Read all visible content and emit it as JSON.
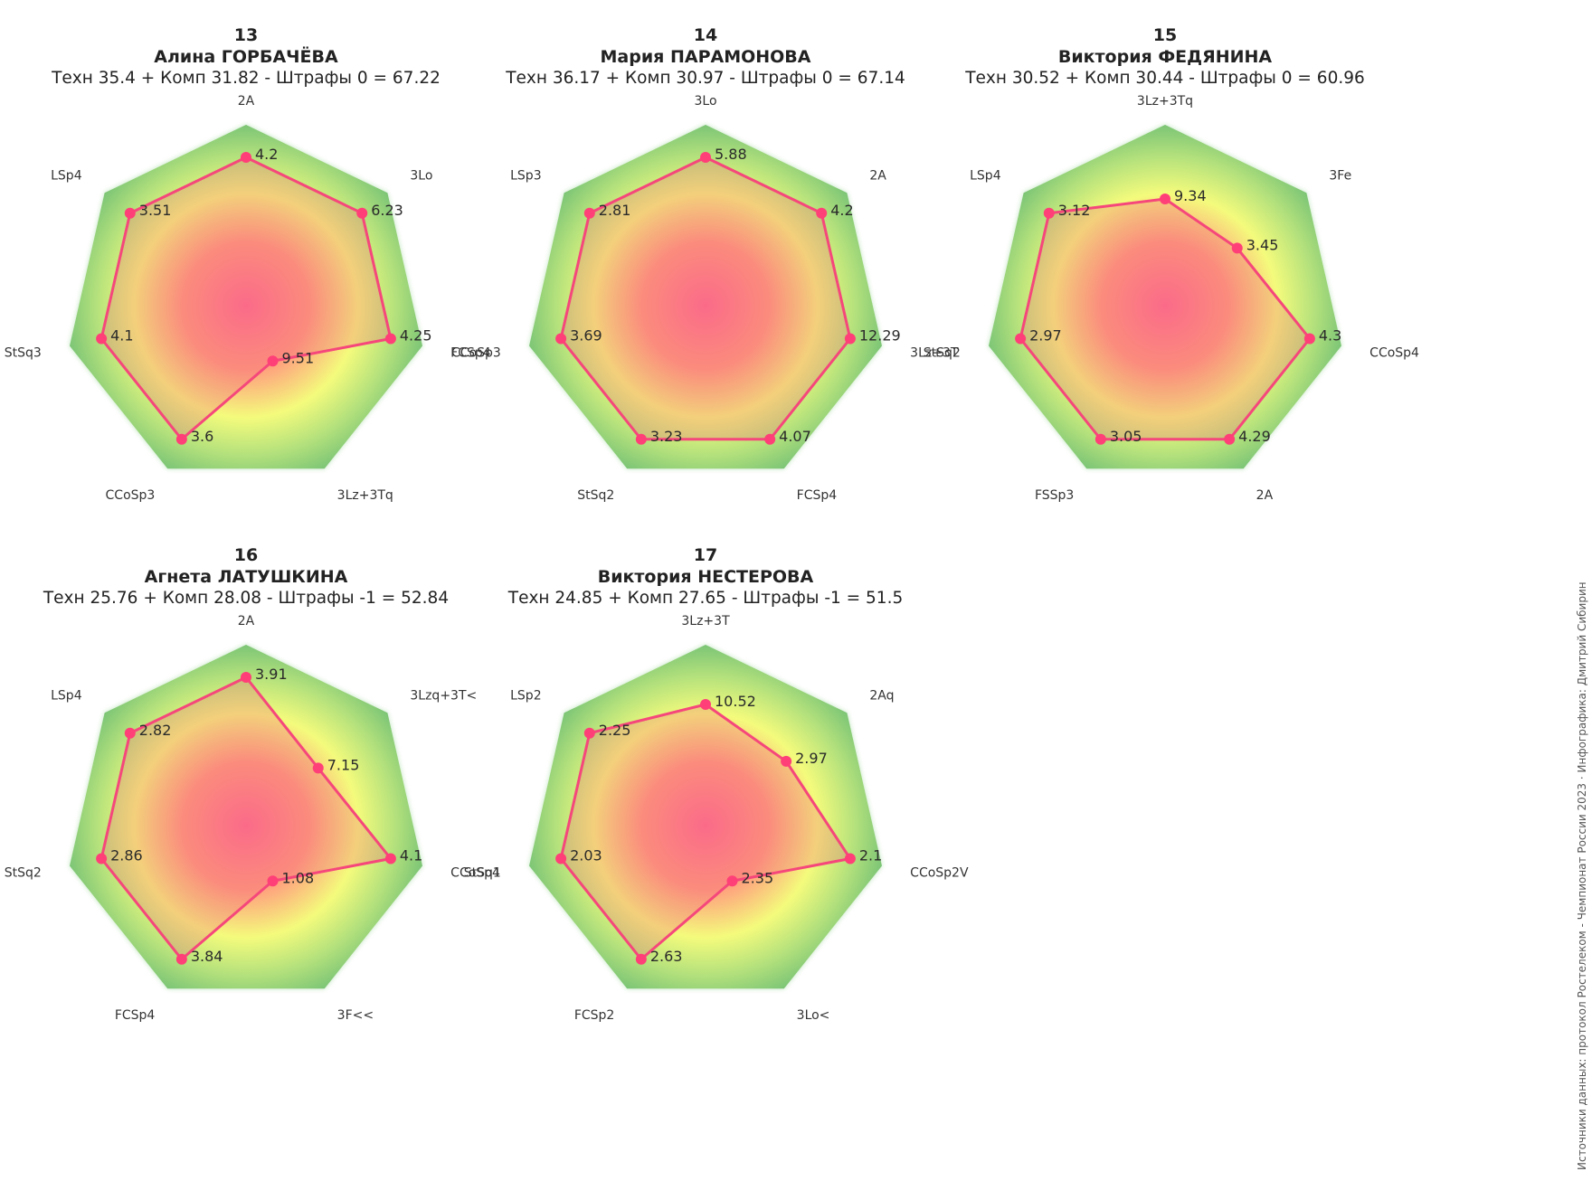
{
  "colors": {
    "outer_green": "#7cc576",
    "mid_yellow": "#f4fb7c",
    "inner_pink": "#ff6f8f",
    "line": "#f5477b",
    "marker": "#ff3f78"
  },
  "credit": "Источники данных: протокол Ростелеком - Чемпионат России 2023 · Инфографика: Дмитрий Сибирин",
  "chart_data": [
    {
      "type": "radar",
      "rank": "13",
      "name": "Алина ГОРБАЧЁВА",
      "score_line": "Техн 35.4 + Комп 31.82 - Штрафы 0 = 67.22",
      "axes": [
        "2A",
        "3Lo",
        "FCSp4",
        "3Lz+3Tq",
        "CCoSp3",
        "StSq3",
        "LSp4"
      ],
      "values": [
        4.2,
        6.23,
        4.25,
        9.51,
        3.6,
        4.1,
        3.51
      ],
      "value_labels": [
        "4.2",
        "6.23",
        "4.25",
        "9.51",
        "3.6",
        "4.1",
        "3.51"
      ],
      "radii": [
        0.82,
        0.82,
        0.82,
        0.34,
        0.82,
        0.82,
        0.82
      ]
    },
    {
      "type": "radar",
      "rank": "14",
      "name": "Мария ПАРАМОНОВА",
      "score_line": "Техн 36.17 + Комп 30.97 - Штрафы 0 = 67.14",
      "axes": [
        "3Lo",
        "2A",
        "3Lz+3T",
        "FCSp4",
        "StSq2",
        "CCoSp3",
        "LSp3"
      ],
      "values": [
        5.88,
        4.2,
        12.29,
        4.07,
        3.23,
        3.69,
        2.81
      ],
      "value_labels": [
        "5.88",
        "4.2",
        "12.29",
        "4.07",
        "3.23",
        "3.69",
        "2.81"
      ],
      "radii": [
        0.82,
        0.82,
        0.82,
        0.82,
        0.82,
        0.82,
        0.82
      ]
    },
    {
      "type": "radar",
      "rank": "15",
      "name": "Виктория ФЕДЯНИНА",
      "score_line": "Техн 30.52 + Комп 30.44 - Штрафы 0 = 60.96",
      "axes": [
        "3Lz+3Tq",
        "3Fe",
        "CCoSp4",
        "2A",
        "FSSp3",
        "StSq2",
        "LSp4"
      ],
      "values": [
        9.34,
        3.45,
        4.3,
        4.29,
        3.05,
        2.97,
        3.12
      ],
      "value_labels": [
        "9.34",
        "3.45",
        "4.3",
        "4.29",
        "3.05",
        "2.97",
        "3.12"
      ],
      "radii": [
        0.59,
        0.51,
        0.82,
        0.82,
        0.82,
        0.82,
        0.82
      ]
    },
    {
      "type": "radar",
      "rank": "16",
      "name": "Агнета ЛАТУШКИНА",
      "score_line": "Техн 25.76 + Комп 28.08 - Штрафы -1 = 52.84",
      "axes": [
        "2A",
        "3Lzq+3T<",
        "CCoSp4",
        "3F<<",
        "FCSp4",
        "StSq2",
        "LSp4"
      ],
      "values": [
        3.91,
        7.15,
        4.1,
        1.08,
        3.84,
        2.86,
        2.82
      ],
      "value_labels": [
        "3.91",
        "7.15",
        "4.1",
        "1.08",
        "3.84",
        "2.86",
        "2.82"
      ],
      "radii": [
        0.82,
        0.51,
        0.82,
        0.34,
        0.82,
        0.82,
        0.82
      ]
    },
    {
      "type": "radar",
      "rank": "17",
      "name": "Виктория НЕСТЕРОВА",
      "score_line": "Техн 24.85 + Комп 27.65 - Штрафы -1 = 51.5",
      "axes": [
        "3Lz+3T",
        "2Aq",
        "CCoSp2V",
        "3Lo<",
        "FCSp2",
        "StSq1",
        "LSp2"
      ],
      "values": [
        10.52,
        2.97,
        2.1,
        2.35,
        2.63,
        2.03,
        2.25
      ],
      "value_labels": [
        "10.52",
        "2.97",
        "2.1",
        "2.35",
        "2.63",
        "2.03",
        "2.25"
      ],
      "radii": [
        0.67,
        0.57,
        0.82,
        0.34,
        0.82,
        0.82,
        0.82
      ]
    }
  ]
}
